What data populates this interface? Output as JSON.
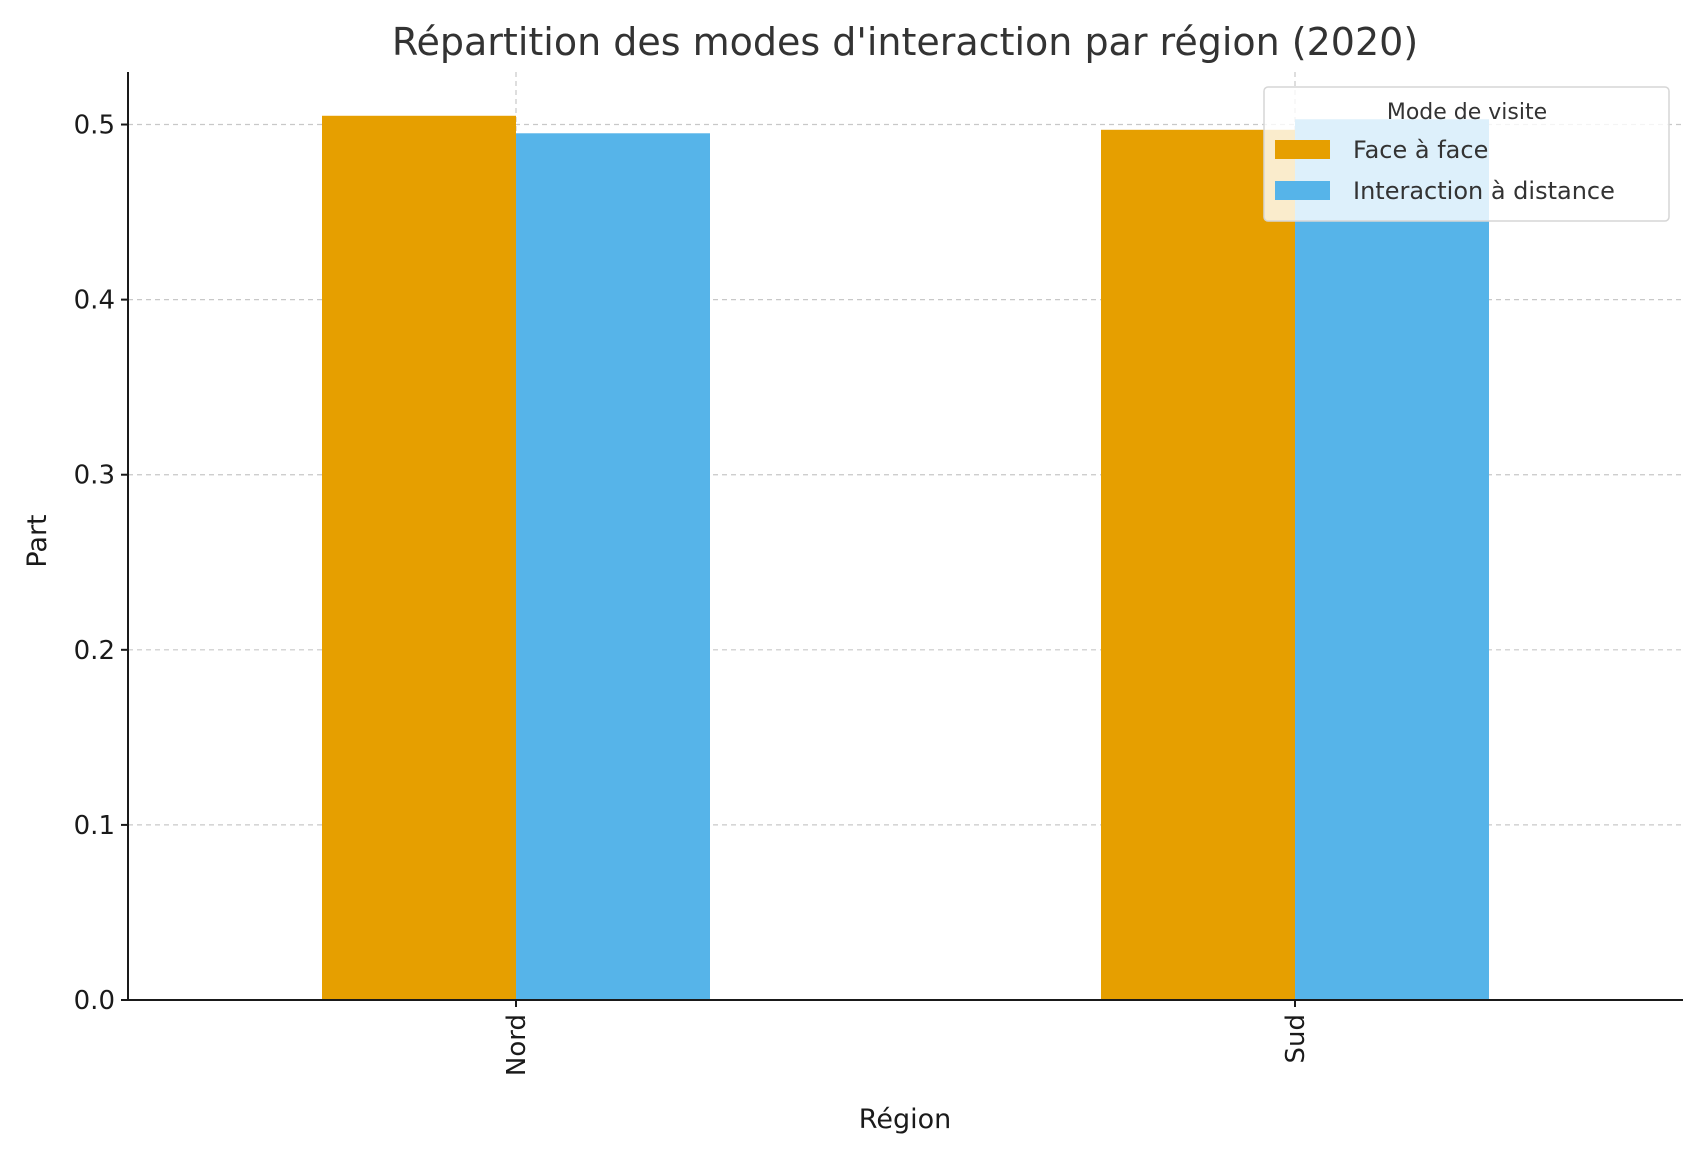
{
  "chart_data": {
    "type": "bar",
    "title": "Répartition des modes d'interaction par région (2020)",
    "xlabel": "Région",
    "ylabel": "Part",
    "categories": [
      "Nord",
      "Sud"
    ],
    "series": [
      {
        "name": "Face à face",
        "color": "#E69F00",
        "values": [
          0.505,
          0.497
        ]
      },
      {
        "name": "Interaction à distance",
        "color": "#56B4E9",
        "values": [
          0.495,
          0.503
        ]
      }
    ],
    "ylim": [
      0,
      0.53
    ],
    "yticks": [
      0.0,
      0.1,
      0.2,
      0.3,
      0.4,
      0.5
    ],
    "ytick_labels": [
      "0.0",
      "0.1",
      "0.2",
      "0.3",
      "0.4",
      "0.5"
    ],
    "grid": true,
    "legend": {
      "title": "Mode de visite",
      "placement": "top-right"
    }
  }
}
